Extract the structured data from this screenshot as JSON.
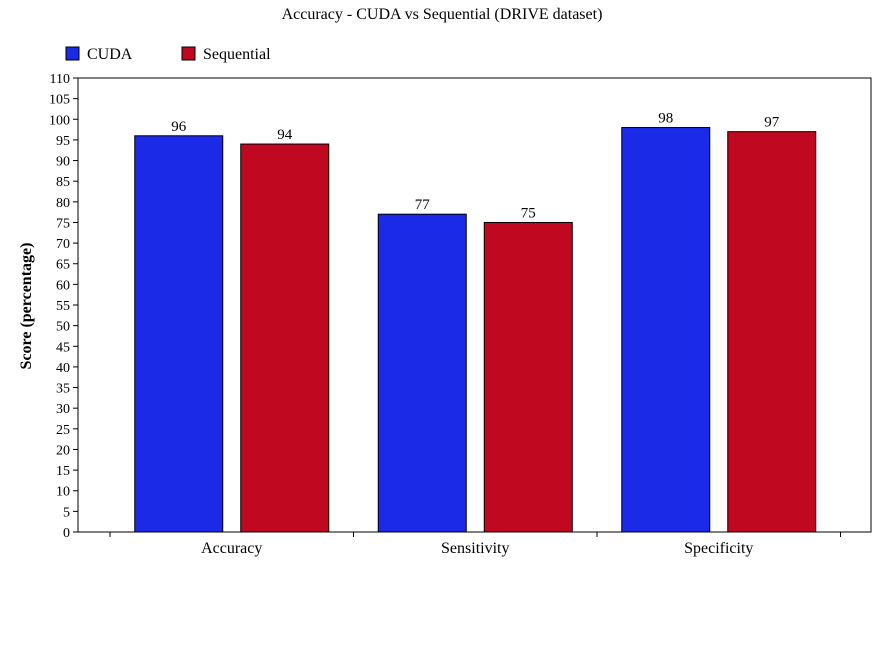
{
  "chart_data": {
    "type": "bar",
    "title": "Accuracy - CUDA vs Sequential (DRIVE dataset)",
    "xlabel": "",
    "ylabel": "Score (percentage)",
    "categories": [
      "Accuracy",
      "Sensitivity",
      "Specificity"
    ],
    "series": [
      {
        "name": "CUDA",
        "color": "#1a2ae6",
        "values": [
          96,
          77,
          98
        ]
      },
      {
        "name": "Sequential",
        "color": "#c00820",
        "values": [
          94,
          75,
          97
        ]
      }
    ],
    "ylim": [
      0,
      110
    ],
    "ytick_step": 5,
    "grid": false,
    "legend": "top-left",
    "data_labels": true
  }
}
